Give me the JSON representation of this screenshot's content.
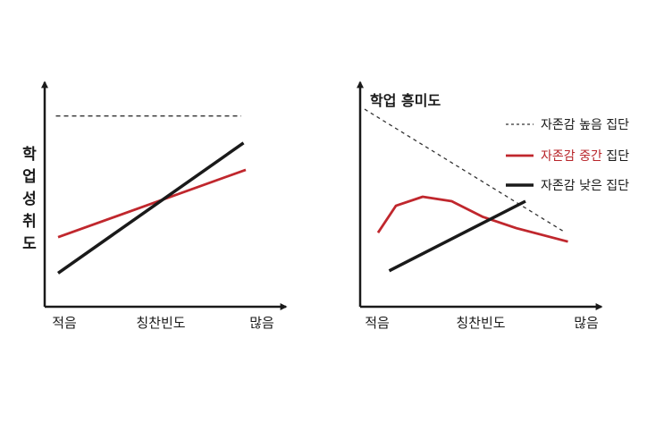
{
  "colors": {
    "axis": "#1a1a1a",
    "black_series": "#1a1a1a",
    "red_series": "#c0272d",
    "dotted_series": "#333333",
    "red_label": "#b8252a"
  },
  "chart_data": [
    {
      "type": "line",
      "title": "",
      "xlabel": "칭찬빈도",
      "ylabel": "학업 성취도",
      "x_tick_labels": [
        "적음",
        "칭찬빈도",
        "많음"
      ],
      "xlim": [
        0,
        1
      ],
      "ylim": [
        0,
        1
      ],
      "grid": false,
      "legend": "none",
      "series": [
        {
          "style": "dashed",
          "color": "dotted",
          "x": [
            0.05,
            0.88
          ],
          "y": [
            0.85,
            0.85
          ]
        },
        {
          "style": "solid",
          "color": "red",
          "x": [
            0.06,
            0.9
          ],
          "y": [
            0.31,
            0.61
          ]
        },
        {
          "style": "solid",
          "color": "black",
          "x": [
            0.06,
            0.89
          ],
          "y": [
            0.15,
            0.73
          ]
        }
      ]
    },
    {
      "type": "line",
      "title": "",
      "xlabel": "칭찬빈도",
      "ylabel": "학업 흥미도",
      "x_tick_labels": [
        "적음",
        "칭찬빈도",
        "많음"
      ],
      "xlim": [
        0,
        1
      ],
      "ylim": [
        0,
        1
      ],
      "grid": false,
      "legend": "top-right",
      "series": [
        {
          "name": "자존감 높음 집단",
          "style": "dotted",
          "color": "dotted",
          "x": [
            0.02,
            0.92
          ],
          "y": [
            0.88,
            0.33
          ]
        },
        {
          "name": "자존감 중간 집단",
          "style": "solid",
          "color": "red",
          "x": [
            0.08,
            0.16,
            0.28,
            0.41,
            0.55,
            0.7,
            0.93
          ],
          "y": [
            0.33,
            0.45,
            0.49,
            0.47,
            0.4,
            0.35,
            0.29
          ]
        },
        {
          "name": "자존감 낮은 집단",
          "style": "solid",
          "color": "black",
          "x": [
            0.13,
            0.74
          ],
          "y": [
            0.16,
            0.47
          ]
        }
      ]
    }
  ],
  "left_chart": {
    "ylabel_chars": [
      "학",
      "업",
      "성",
      "취",
      "도"
    ],
    "x_ticks": {
      "low": "적음",
      "mid": "칭찬빈도",
      "high": "많음"
    }
  },
  "right_chart": {
    "ylabel": "학업 흥미도",
    "x_ticks": {
      "low": "적음",
      "mid": "칭찬빈도",
      "high": "많음"
    },
    "legend": {
      "high": "자존감 높음 집단",
      "mid_colored": "자존감 중간",
      "mid_suffix": " 집단",
      "low": "자존감 낮은 집단"
    }
  }
}
